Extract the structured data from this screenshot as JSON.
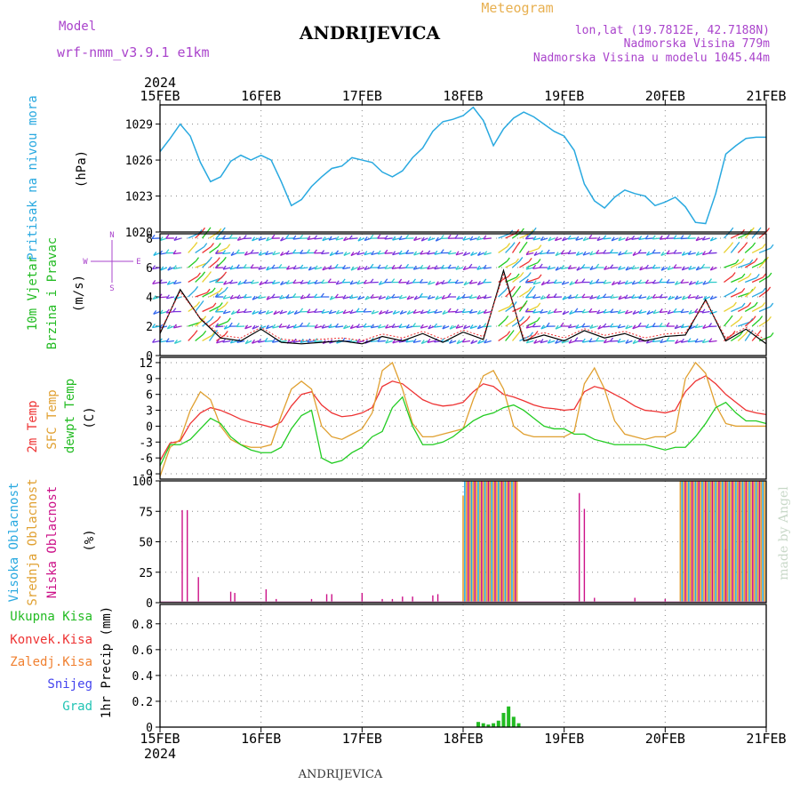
{
  "header": {
    "model_label": "Model",
    "model_name": "wrf-nmm_v3.9.1 e1km",
    "location": "ANDRIJEVICA",
    "meteogram": "Meteogram",
    "lonlat": "lon,lat (19.7812E, 42.7188N)",
    "elevation": "Nadmorska Visina 779m",
    "model_elevation": "Nadmorska Visina u modelu 1045.44m",
    "footer_location": "ANDRIJEVICA",
    "watermark": "made by Angel"
  },
  "time_axis": {
    "year": "2024",
    "ticks": [
      "15FEB",
      "16FEB",
      "17FEB",
      "18FEB",
      "19FEB",
      "20FEB",
      "21FEB"
    ]
  },
  "colors": {
    "pressure": "#29a9e0",
    "t2m": "#ee3333",
    "sfc": "#e0a030",
    "dew": "#22cc22",
    "low_cloud": "#cc1188",
    "mid_cloud": "#e8a030",
    "high_cloud": "#29a9e0",
    "precip": "#22bb22",
    "frame": "#000000",
    "grid": "#888888"
  },
  "chart_data": [
    {
      "type": "line",
      "panel": "pressure",
      "ylabel": "(hPa)",
      "side_labels": [
        "Pritisak na nivou mora"
      ],
      "yticks": [
        "1020",
        "1023",
        "1026",
        "1029"
      ],
      "ylim": [
        1020,
        1030.6
      ],
      "x": [
        0,
        0.1,
        0.2,
        0.3,
        0.4,
        0.5,
        0.6,
        0.7,
        0.8,
        0.9,
        1.0,
        1.1,
        1.2,
        1.3,
        1.4,
        1.5,
        1.6,
        1.7,
        1.8,
        1.9,
        2.0,
        2.1,
        2.2,
        2.3,
        2.4,
        2.5,
        2.6,
        2.7,
        2.8,
        2.9,
        3.0,
        3.1,
        3.2,
        3.3,
        3.4,
        3.5,
        3.6,
        3.7,
        3.8,
        3.9,
        4.0,
        4.1,
        4.2,
        4.3,
        4.4,
        4.5,
        4.6,
        4.7,
        4.8,
        4.9,
        5.0,
        5.1,
        5.2,
        5.3,
        5.4,
        5.5,
        5.6,
        5.7,
        5.8,
        5.9,
        6.0
      ],
      "values": [
        1026.7,
        1027.8,
        1029.0,
        1028.0,
        1025.8,
        1024.2,
        1024.6,
        1025.9,
        1026.4,
        1026.0,
        1026.4,
        1026.0,
        1024.2,
        1022.2,
        1022.7,
        1023.8,
        1024.6,
        1025.3,
        1025.5,
        1026.2,
        1026.0,
        1025.8,
        1025.0,
        1024.6,
        1025.1,
        1026.2,
        1027.0,
        1028.4,
        1029.2,
        1029.4,
        1029.7,
        1030.4,
        1029.3,
        1027.2,
        1028.6,
        1029.5,
        1030.0,
        1029.6,
        1029.0,
        1028.4,
        1028.0,
        1026.8,
        1024.0,
        1022.6,
        1022.0,
        1022.9,
        1023.5,
        1023.2,
        1023.0,
        1022.2,
        1022.5,
        1022.9,
        1022.1,
        1020.8,
        1020.7,
        1023.2,
        1026.5,
        1027.2,
        1027.8,
        1027.9,
        1027.9
      ]
    },
    {
      "type": "line",
      "panel": "wind",
      "ylabel": "(m/s)",
      "side_labels": [
        "10m Vjetar",
        "Brzina i Pravac"
      ],
      "compass": {
        "n": "N",
        "s": "S",
        "w": "W",
        "e": "E"
      },
      "yticks": [
        "0",
        "2",
        "4",
        "6",
        "8"
      ],
      "ylim": [
        0,
        8.3
      ],
      "series": [
        {
          "name": "speed",
          "x": [
            0,
            0.2,
            0.4,
            0.6,
            0.8,
            1.0,
            1.2,
            1.4,
            1.6,
            1.8,
            2.0,
            2.2,
            2.4,
            2.6,
            2.8,
            3.0,
            3.2,
            3.4,
            3.6,
            3.8,
            4.0,
            4.2,
            4.4,
            4.6,
            4.8,
            5.0,
            5.2,
            5.4,
            5.6,
            5.8,
            6.0
          ],
          "values": [
            1.5,
            4.5,
            2.5,
            1.2,
            1.0,
            1.8,
            0.9,
            0.8,
            0.9,
            1.0,
            0.8,
            1.3,
            1.0,
            1.5,
            0.9,
            1.6,
            1.1,
            5.8,
            1.0,
            1.4,
            1.0,
            1.7,
            1.2,
            1.5,
            1.0,
            1.3,
            1.4,
            3.8,
            1.0,
            1.8,
            0.8
          ]
        }
      ]
    },
    {
      "type": "line",
      "panel": "temperature",
      "ylabel": "(C)",
      "side_labels": [
        "2m Temp",
        "SFC Temp",
        "dewpt Temp"
      ],
      "yticks": [
        "-9",
        "-6",
        "-3",
        "0",
        "3",
        "6",
        "9",
        "12"
      ],
      "ylim": [
        -10,
        13
      ],
      "x": [
        0,
        0.1,
        0.2,
        0.3,
        0.4,
        0.5,
        0.6,
        0.7,
        0.8,
        0.9,
        1.0,
        1.1,
        1.2,
        1.3,
        1.4,
        1.5,
        1.6,
        1.7,
        1.8,
        1.9,
        2.0,
        2.1,
        2.2,
        2.3,
        2.4,
        2.5,
        2.6,
        2.7,
        2.8,
        2.9,
        3.0,
        3.1,
        3.2,
        3.3,
        3.4,
        3.5,
        3.6,
        3.7,
        3.8,
        3.9,
        4.0,
        4.1,
        4.2,
        4.3,
        4.4,
        4.5,
        4.6,
        4.7,
        4.8,
        4.9,
        5.0,
        5.1,
        5.2,
        5.3,
        5.4,
        5.5,
        5.6,
        5.7,
        5.8,
        5.9,
        6.0
      ],
      "series": [
        {
          "name": "2m Temp",
          "values": [
            -6.5,
            -3.2,
            -2.8,
            0.5,
            2.5,
            3.5,
            3.0,
            2.2,
            1.3,
            0.7,
            0.3,
            -0.2,
            0.8,
            3.8,
            6.0,
            6.5,
            4.0,
            2.5,
            1.8,
            2.0,
            2.5,
            3.5,
            7.5,
            8.5,
            8.0,
            6.5,
            5.0,
            4.2,
            3.8,
            4.0,
            4.5,
            6.5,
            8.0,
            7.5,
            6.0,
            5.5,
            4.8,
            4.0,
            3.5,
            3.3,
            3.0,
            3.2,
            6.5,
            7.5,
            7.0,
            6.0,
            5.0,
            3.8,
            3.0,
            2.8,
            2.5,
            3.0,
            6.5,
            8.5,
            9.5,
            8.0,
            6.0,
            4.5,
            3.0,
            2.5,
            2.2
          ]
        },
        {
          "name": "SFC Temp",
          "values": [
            -9.5,
            -4.0,
            -2.5,
            3.0,
            6.5,
            5.0,
            0.0,
            -2.5,
            -3.5,
            -4.0,
            -4.0,
            -3.5,
            2.0,
            7.0,
            8.5,
            7.0,
            0.0,
            -2.0,
            -2.5,
            -1.5,
            -0.5,
            2.5,
            10.5,
            12.0,
            7.0,
            0.5,
            -2.0,
            -2.0,
            -1.5,
            -1.0,
            -0.5,
            5.0,
            9.5,
            10.5,
            7.0,
            0.0,
            -1.5,
            -2.0,
            -2.0,
            -2.0,
            -2.0,
            -1.0,
            8.0,
            11.0,
            7.0,
            1.0,
            -1.5,
            -2.0,
            -2.5,
            -2.0,
            -2.0,
            -1.0,
            9.0,
            12.0,
            10.0,
            4.0,
            0.5,
            0.0,
            0.0,
            0.0,
            0.0
          ]
        },
        {
          "name": "dewpt Temp",
          "values": [
            -7.5,
            -3.5,
            -3.5,
            -2.5,
            -0.5,
            1.5,
            0.5,
            -2.0,
            -3.5,
            -4.5,
            -5.0,
            -5.0,
            -4.0,
            -0.5,
            2.0,
            3.0,
            -6.0,
            -7.0,
            -6.5,
            -5.0,
            -4.0,
            -2.0,
            -1.0,
            3.5,
            5.5,
            0.0,
            -3.5,
            -3.5,
            -3.0,
            -2.0,
            -0.5,
            1.0,
            2.0,
            2.5,
            3.5,
            4.0,
            3.0,
            1.5,
            0.0,
            -0.5,
            -0.5,
            -1.5,
            -1.5,
            -2.5,
            -3.0,
            -3.5,
            -3.5,
            -3.5,
            -3.5,
            -4.0,
            -4.5,
            -4.0,
            -4.0,
            -2.0,
            0.5,
            3.5,
            4.5,
            2.5,
            1.0,
            1.0,
            0.5
          ]
        }
      ]
    },
    {
      "type": "bar",
      "panel": "cloud",
      "ylabel": "(%)",
      "side_labels": [
        "Visoka Oblacnost",
        "Srednja Oblacnost",
        "Niska Oblacnost"
      ],
      "yticks": [
        "0",
        "25",
        "50",
        "75",
        "100"
      ],
      "ylim": [
        0,
        100
      ],
      "series": [
        {
          "name": "Niska Oblacnost",
          "x": [
            0.22,
            0.27,
            0.38,
            0.7,
            0.74,
            1.05,
            1.15,
            1.5,
            1.65,
            1.7,
            2.0,
            2.2,
            2.3,
            2.4,
            2.5,
            2.7,
            2.75,
            4.15,
            4.2,
            4.3,
            4.7,
            5.0,
            5.4,
            5.6,
            5.8
          ],
          "values": [
            76,
            76,
            21,
            9,
            8,
            11,
            3,
            3,
            7,
            7,
            8,
            3,
            3,
            5,
            5,
            6,
            7,
            90,
            77,
            4,
            4,
            3,
            3,
            44,
            4
          ]
        }
      ],
      "bands": [
        {
          "start": 3.0,
          "end": 3.55,
          "value": 100
        },
        {
          "start": 5.15,
          "end": 6.0,
          "value": 100
        }
      ]
    },
    {
      "type": "bar",
      "panel": "precipitation",
      "ylabel": "1hr Precip (mm)",
      "legend": [
        "Ukupna Kisa",
        "Konvek.Kisa",
        "Zaledj.Kisa",
        "Snijeg",
        "Grad"
      ],
      "legend_colors": [
        "#22bb22",
        "#ee3333",
        "#f08030",
        "#4444ee",
        "#22c4b4"
      ],
      "yticks": [
        "0",
        "0.2",
        "0.4",
        "0.6",
        "0.8"
      ],
      "ylim": [
        0,
        0.95
      ],
      "series": [
        {
          "name": "Ukupna Kisa",
          "x": [
            3.15,
            3.2,
            3.25,
            3.3,
            3.35,
            3.4,
            3.45,
            3.5,
            3.55
          ],
          "values": [
            0.04,
            0.03,
            0.02,
            0.03,
            0.05,
            0.11,
            0.16,
            0.08,
            0.03
          ]
        }
      ]
    }
  ]
}
